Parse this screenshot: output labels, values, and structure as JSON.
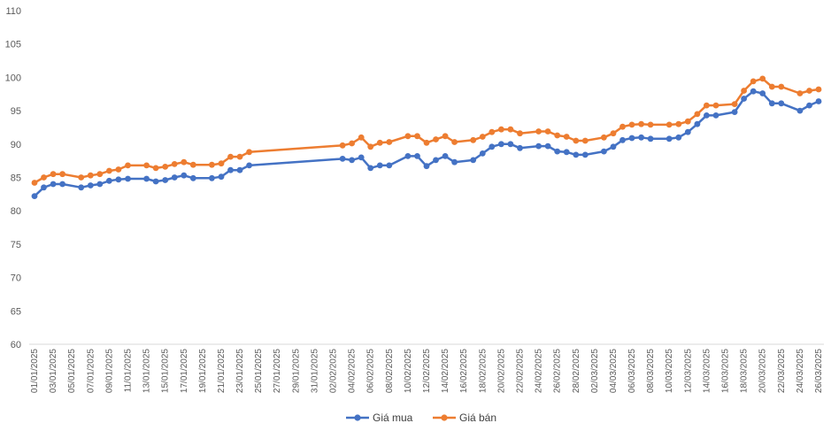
{
  "chart_data": {
    "type": "line",
    "title": "",
    "xlabel": "",
    "ylabel": "",
    "ylim": [
      60,
      110
    ],
    "y_ticks": [
      "60",
      "65",
      "70",
      "75",
      "80",
      "85",
      "90",
      "95",
      "100",
      "105",
      "110"
    ],
    "x_tick_labels": [
      "01/01/2025",
      "03/01/2025",
      "05/01/2025",
      "07/01/2025",
      "09/01/2025",
      "11/01/2025",
      "13/01/2025",
      "15/01/2025",
      "17/01/2025",
      "19/01/2025",
      "21/01/2025",
      "23/01/2025",
      "25/01/2025",
      "27/01/2025",
      "29/01/2025",
      "31/01/2025",
      "02/02/2025",
      "04/02/2025",
      "06/02/2025",
      "08/02/2025",
      "10/02/2025",
      "12/02/2025",
      "14/02/2025",
      "16/02/2025",
      "18/02/2025",
      "20/02/2025",
      "22/02/2025",
      "24/02/2025",
      "26/02/2025",
      "28/02/2025",
      "02/03/2025",
      "04/03/2025",
      "06/03/2025",
      "08/03/2025",
      "10/03/2025",
      "12/03/2025",
      "14/03/2025",
      "16/03/2025",
      "18/03/2025",
      "20/03/2025",
      "22/03/2025",
      "24/03/2025",
      "26/03/2025"
    ],
    "x_range": [
      "01/01/2025",
      "26/03/2025"
    ],
    "grid": false,
    "legend_position": "bottom",
    "colors": {
      "Giá mua": "#4472c4",
      "Giá bán": "#ed7d31"
    },
    "series": [
      {
        "name": "Giá mua",
        "x": [
          "01/01/2025",
          "02/01/2025",
          "03/01/2025",
          "04/01/2025",
          "06/01/2025",
          "07/01/2025",
          "08/01/2025",
          "09/01/2025",
          "10/01/2025",
          "11/01/2025",
          "13/01/2025",
          "14/01/2025",
          "15/01/2025",
          "16/01/2025",
          "17/01/2025",
          "18/01/2025",
          "20/01/2025",
          "21/01/2025",
          "22/01/2025",
          "23/01/2025",
          "24/01/2025",
          "03/02/2025",
          "04/02/2025",
          "05/02/2025",
          "06/02/2025",
          "07/02/2025",
          "08/02/2025",
          "10/02/2025",
          "11/02/2025",
          "12/02/2025",
          "13/02/2025",
          "14/02/2025",
          "15/02/2025",
          "17/02/2025",
          "18/02/2025",
          "19/02/2025",
          "20/02/2025",
          "21/02/2025",
          "22/02/2025",
          "24/02/2025",
          "25/02/2025",
          "26/02/2025",
          "27/02/2025",
          "28/02/2025",
          "01/03/2025",
          "03/03/2025",
          "04/03/2025",
          "05/03/2025",
          "06/03/2025",
          "07/03/2025",
          "08/03/2025",
          "10/03/2025",
          "11/03/2025",
          "12/03/2025",
          "13/03/2025",
          "14/03/2025",
          "15/03/2025",
          "17/03/2025",
          "18/03/2025",
          "19/03/2025",
          "20/03/2025",
          "21/03/2025",
          "22/03/2025",
          "24/03/2025",
          "25/03/2025",
          "26/03/2025"
        ],
        "values": [
          82.2,
          83.5,
          84.0,
          84.0,
          83.5,
          83.8,
          84.0,
          84.5,
          84.7,
          84.8,
          84.8,
          84.4,
          84.6,
          85.0,
          85.3,
          84.9,
          84.9,
          85.1,
          86.1,
          86.1,
          86.8,
          87.8,
          87.6,
          88.0,
          86.4,
          86.8,
          86.8,
          88.2,
          88.2,
          86.7,
          87.6,
          88.2,
          87.3,
          87.6,
          88.6,
          89.6,
          90.0,
          90.0,
          89.4,
          89.7,
          89.7,
          88.9,
          88.8,
          88.4,
          88.4,
          88.9,
          89.6,
          90.6,
          90.9,
          91.0,
          90.8,
          90.8,
          91.0,
          91.8,
          93.0,
          94.3,
          94.3,
          94.8,
          96.8,
          97.9,
          97.6,
          96.1,
          96.1,
          95.0,
          95.8,
          96.4
        ]
      },
      {
        "name": "Giá bán",
        "x": [
          "01/01/2025",
          "02/01/2025",
          "03/01/2025",
          "04/01/2025",
          "06/01/2025",
          "07/01/2025",
          "08/01/2025",
          "09/01/2025",
          "10/01/2025",
          "11/01/2025",
          "13/01/2025",
          "14/01/2025",
          "15/01/2025",
          "16/01/2025",
          "17/01/2025",
          "18/01/2025",
          "20/01/2025",
          "21/01/2025",
          "22/01/2025",
          "23/01/2025",
          "24/01/2025",
          "03/02/2025",
          "04/02/2025",
          "05/02/2025",
          "06/02/2025",
          "07/02/2025",
          "08/02/2025",
          "10/02/2025",
          "11/02/2025",
          "12/02/2025",
          "13/02/2025",
          "14/02/2025",
          "15/02/2025",
          "17/02/2025",
          "18/02/2025",
          "19/02/2025",
          "20/02/2025",
          "21/02/2025",
          "22/02/2025",
          "24/02/2025",
          "25/02/2025",
          "26/02/2025",
          "27/02/2025",
          "28/02/2025",
          "01/03/2025",
          "03/03/2025",
          "04/03/2025",
          "05/03/2025",
          "06/03/2025",
          "07/03/2025",
          "08/03/2025",
          "10/03/2025",
          "11/03/2025",
          "12/03/2025",
          "13/03/2025",
          "14/03/2025",
          "15/03/2025",
          "17/03/2025",
          "18/03/2025",
          "19/03/2025",
          "20/03/2025",
          "21/03/2025",
          "22/03/2025",
          "24/03/2025",
          "25/03/2025",
          "26/03/2025"
        ],
        "values": [
          84.2,
          85.0,
          85.5,
          85.5,
          85.0,
          85.3,
          85.5,
          86.0,
          86.2,
          86.8,
          86.8,
          86.4,
          86.6,
          87.0,
          87.3,
          86.9,
          86.9,
          87.1,
          88.1,
          88.1,
          88.8,
          89.8,
          90.1,
          91.0,
          89.6,
          90.2,
          90.3,
          91.2,
          91.2,
          90.2,
          90.7,
          91.2,
          90.3,
          90.6,
          91.1,
          91.8,
          92.2,
          92.2,
          91.6,
          91.9,
          91.9,
          91.3,
          91.1,
          90.5,
          90.5,
          91.0,
          91.6,
          92.6,
          92.9,
          93.0,
          92.9,
          92.9,
          93.0,
          93.4,
          94.5,
          95.8,
          95.8,
          96.0,
          98.0,
          99.4,
          99.8,
          98.6,
          98.6,
          97.6,
          98.0,
          98.2
        ]
      }
    ]
  }
}
